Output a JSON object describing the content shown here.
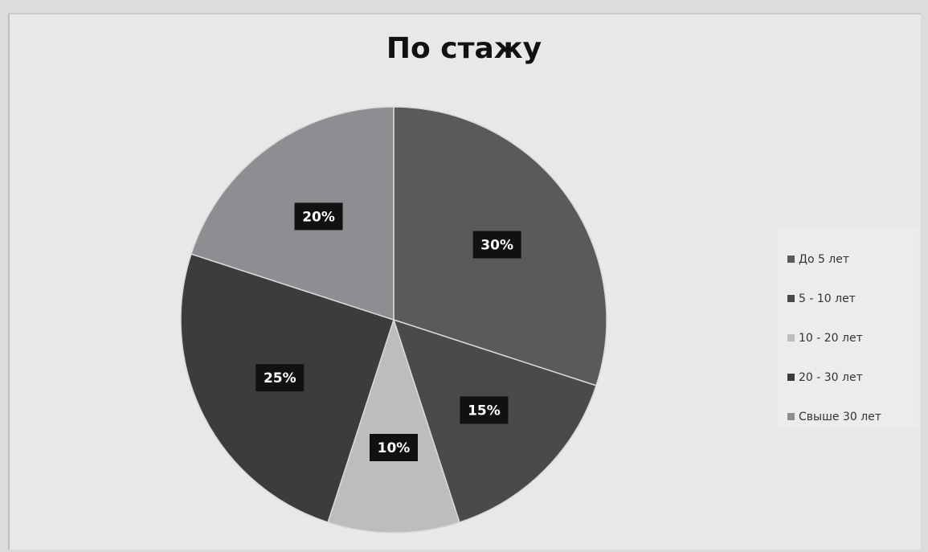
{
  "chart_data": {
    "type": "pie",
    "title": "По стажу",
    "categories": [
      "До 5 лет",
      "5 - 10 лет",
      "10 - 20 лет",
      "20 - 30 лет",
      "Свыше 30 лет"
    ],
    "values": [
      30,
      15,
      10,
      25,
      20
    ],
    "labels": [
      "30%",
      "15%",
      "10%",
      "25%",
      "20%"
    ],
    "colors": [
      "#5a5a5a",
      "#4a4a4a",
      "#bdbdbd",
      "#3c3c3c",
      "#8e8e92"
    ],
    "legend_position": "right",
    "start_angle": "12 o'clock, clockwise"
  }
}
